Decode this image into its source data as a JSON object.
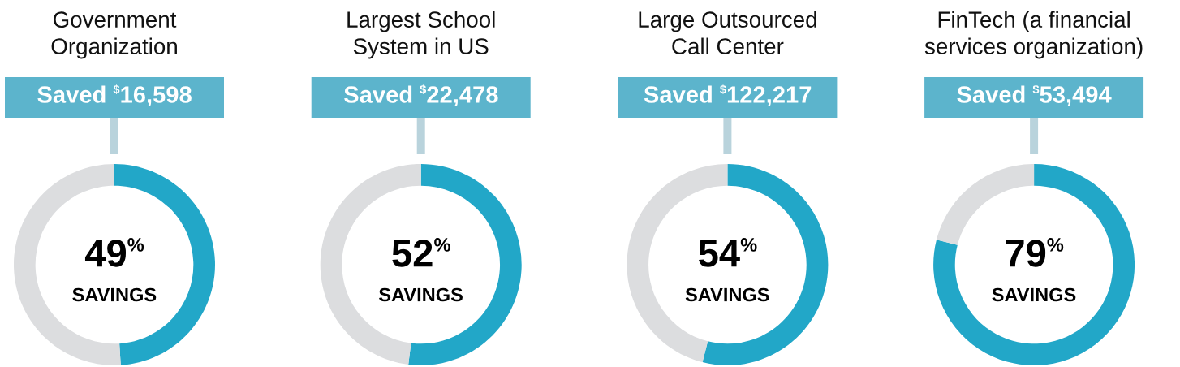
{
  "chart_data": [
    {
      "type": "donut",
      "title": "Government\nOrganization",
      "categories": [
        null,
        null
      ],
      "values": [
        49,
        51
      ],
      "colors": [
        "#22a7c8",
        "#dcdddf"
      ],
      "value_labels": [
        "49$^{%}$",
        null
      ],
      "annotations": [
        "Saved $^{$}$16,598",
        "SAVINGS"
      ]
    },
    {
      "type": "donut",
      "title": "Largest School\nSystem in US",
      "categories": [
        null,
        null
      ],
      "values": [
        52,
        48
      ],
      "colors": [
        "#22a7c8",
        "#dcdddf"
      ],
      "value_labels": [
        "52$^{%}$",
        null
      ],
      "annotations": [
        "Saved $^{$}$22,478",
        "SAVINGS"
      ]
    },
    {
      "type": "donut",
      "title": "Large Outsourced\nCall Center",
      "categories": [
        null,
        null
      ],
      "values": [
        54,
        46
      ],
      "colors": [
        "#22a7c8",
        "#dcdddf"
      ],
      "value_labels": [
        "54$^{%}$",
        null
      ],
      "annotations": [
        "Saved $^{$}$122,217",
        "SAVINGS"
      ]
    },
    {
      "type": "donut",
      "title": "FinTech (a financial\nservices organization)",
      "categories": [
        null,
        null
      ],
      "values": [
        79,
        21
      ],
      "colors": [
        "#22a7c8",
        "#dcdddf"
      ],
      "value_labels": [
        "79$^{%}$",
        null
      ],
      "annotations": [
        "Saved $^{$}$53,494",
        "SAVINGS"
      ]
    }
  ]
}
